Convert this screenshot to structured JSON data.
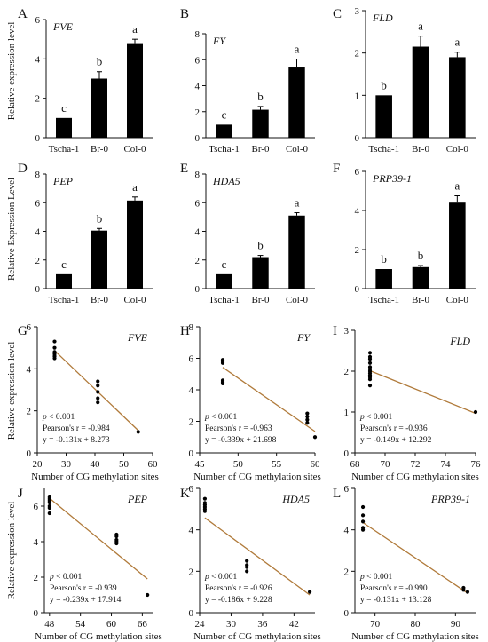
{
  "labels": {
    "ylabel_row1": "Relative expression level",
    "ylabel_row2": "Relative Expression Level",
    "ylabel_row34": "Relative expression level",
    "xlabel_scatter": "Number of CG methylation sites",
    "p_prefix": "p",
    "p_suffix": " < 0.001"
  },
  "chart_data": [
    {
      "panel": "A",
      "type": "bar",
      "gene": "FVE",
      "categories": [
        "Tscha-1",
        "Br-0",
        "Col-0"
      ],
      "values": [
        1.0,
        3.0,
        4.8
      ],
      "errors": [
        0.0,
        0.35,
        0.2
      ],
      "letters": [
        "c",
        "b",
        "a"
      ],
      "ylim": [
        0,
        6
      ],
      "yticks": [
        "0",
        "2",
        "4",
        "6"
      ]
    },
    {
      "panel": "B",
      "type": "bar",
      "gene": "FY",
      "categories": [
        "Tscha-1",
        "Br-0",
        "Col-0"
      ],
      "values": [
        1.0,
        2.15,
        5.4
      ],
      "errors": [
        0.0,
        0.25,
        0.65
      ],
      "letters": [
        "c",
        "b",
        "a"
      ],
      "ylim": [
        0,
        8
      ],
      "yticks": [
        "0",
        "2",
        "4",
        "6",
        "8"
      ]
    },
    {
      "panel": "C",
      "type": "bar",
      "gene": "FLD",
      "categories": [
        "Tscha-1",
        "Br-0",
        "Col-0"
      ],
      "values": [
        1.0,
        2.15,
        1.9
      ],
      "errors": [
        0.0,
        0.25,
        0.12
      ],
      "letters": [
        "b",
        "a",
        "a"
      ],
      "ylim": [
        0,
        3
      ],
      "yticks": [
        "0",
        "1",
        "2",
        "3"
      ]
    },
    {
      "panel": "D",
      "type": "bar",
      "gene": "PEP",
      "categories": [
        "Tscha-1",
        "Br-0",
        "Col-0"
      ],
      "values": [
        1.0,
        4.05,
        6.15
      ],
      "errors": [
        0.0,
        0.15,
        0.25
      ],
      "letters": [
        "c",
        "b",
        "a"
      ],
      "ylim": [
        0,
        8
      ],
      "yticks": [
        "0",
        "2",
        "4",
        "6",
        "8"
      ]
    },
    {
      "panel": "E",
      "type": "bar",
      "gene": "HDA5",
      "categories": [
        "Tscha-1",
        "Br-0",
        "Col-0"
      ],
      "values": [
        1.0,
        2.2,
        5.1
      ],
      "errors": [
        0.0,
        0.12,
        0.2
      ],
      "letters": [
        "c",
        "b",
        "a"
      ],
      "ylim": [
        0,
        8
      ],
      "yticks": [
        "0",
        "2",
        "4",
        "6",
        "8"
      ]
    },
    {
      "panel": "F",
      "type": "bar",
      "gene": "PRP39-1",
      "categories": [
        "Tscha-1",
        "Br-0",
        "Col-0"
      ],
      "values": [
        1.0,
        1.1,
        4.4
      ],
      "errors": [
        0.0,
        0.08,
        0.35
      ],
      "letters": [
        "b",
        "b",
        "a"
      ],
      "ylim": [
        0,
        6
      ],
      "yticks": [
        "0",
        "2",
        "4",
        "6"
      ]
    },
    {
      "panel": "G",
      "type": "scatter",
      "gene": "FVE",
      "xlim": [
        20,
        60
      ],
      "xticks": [
        20,
        30,
        40,
        50,
        60
      ],
      "ylim": [
        0,
        6
      ],
      "yticks": [
        0,
        2,
        4,
        6
      ],
      "x": [
        26,
        26,
        26,
        26,
        26,
        26,
        41,
        41,
        41,
        41,
        41,
        55
      ],
      "y": [
        5.3,
        5.0,
        4.8,
        4.6,
        4.5,
        4.7,
        3.4,
        3.2,
        2.9,
        2.6,
        2.4,
        1.0
      ],
      "fit": {
        "slope": -0.131,
        "intercept": 8.273,
        "x0": 26,
        "x1": 55
      },
      "pearson": "Pearson's r = -0.984",
      "equation": "y = -0.131x + 8.273"
    },
    {
      "panel": "H",
      "type": "scatter",
      "gene": "FY",
      "xlim": [
        45,
        60
      ],
      "xticks": [
        45,
        50,
        55,
        60
      ],
      "ylim": [
        0,
        8
      ],
      "yticks": [
        0,
        2,
        4,
        6,
        8
      ],
      "x": [
        48,
        48,
        48,
        48,
        48,
        48,
        59,
        59,
        59,
        59,
        60
      ],
      "y": [
        5.9,
        5.8,
        5.7,
        4.6,
        4.5,
        4.4,
        2.5,
        2.3,
        2.1,
        1.9,
        1.0
      ],
      "fit": {
        "slope": -0.339,
        "intercept": 21.698,
        "x0": 48,
        "x1": 60
      },
      "pearson": "Pearson's r = -0.963",
      "equation": "y = -0.339x + 21.698"
    },
    {
      "panel": "I",
      "type": "scatter",
      "gene": "FLD",
      "xlim": [
        68,
        76
      ],
      "xticks": [
        68,
        70,
        72,
        74,
        76
      ],
      "ylim": [
        0,
        3
      ],
      "yticks": [
        0,
        1,
        2,
        3
      ],
      "x": [
        69,
        69,
        69,
        69,
        69,
        69,
        69,
        69,
        69,
        69,
        69,
        69,
        76
      ],
      "y": [
        2.45,
        2.35,
        2.3,
        2.2,
        2.1,
        2.05,
        2.0,
        1.95,
        1.9,
        1.85,
        1.8,
        1.65,
        1.0
      ],
      "fit": {
        "slope": -0.149,
        "intercept": 12.292,
        "x0": 69,
        "x1": 76
      },
      "pearson": "Pearson's r = -0.936",
      "equation": "y = -0.149x + 12.292"
    },
    {
      "panel": "J",
      "type": "scatter",
      "gene": "PEP",
      "xlim": [
        47,
        68
      ],
      "xticks": [
        48,
        54,
        60,
        66
      ],
      "ylim": [
        0,
        7
      ],
      "yticks": [
        0,
        2,
        4,
        6
      ],
      "x": [
        48,
        48,
        48,
        48,
        48,
        48,
        48,
        61,
        61,
        61,
        61,
        61,
        67
      ],
      "y": [
        6.5,
        6.4,
        6.3,
        6.2,
        6.0,
        5.9,
        5.6,
        4.4,
        4.3,
        4.1,
        4.0,
        3.9,
        1.0
      ],
      "fit": {
        "slope": -0.239,
        "intercept": 17.914,
        "x0": 48,
        "x1": 67
      },
      "pearson": "Pearson's r = -0.939",
      "equation": "y = -0.239x + 17.914"
    },
    {
      "panel": "K",
      "type": "scatter",
      "gene": "HDA5",
      "xlim": [
        24,
        46
      ],
      "xticks": [
        24,
        30,
        36,
        42
      ],
      "ylim": [
        0,
        6
      ],
      "yticks": [
        0,
        2,
        4,
        6
      ],
      "x": [
        25,
        25,
        25,
        25,
        25,
        25,
        33,
        33,
        33,
        33,
        45
      ],
      "y": [
        5.5,
        5.3,
        5.2,
        5.1,
        5.0,
        4.9,
        2.5,
        2.3,
        2.2,
        2.0,
        1.0
      ],
      "fit": {
        "slope": -0.186,
        "intercept": 9.228,
        "x0": 25,
        "x1": 45
      },
      "pearson": "Pearson's r = -0.926",
      "equation": "y = -0.186x + 9.228"
    },
    {
      "panel": "L",
      "type": "scatter",
      "gene": "PRP39-1",
      "xlim": [
        65,
        95
      ],
      "xticks": [
        70,
        80,
        90
      ],
      "ylim": [
        0,
        6
      ],
      "yticks": [
        0,
        2,
        4,
        6
      ],
      "x": [
        67,
        67,
        67,
        67,
        67,
        92,
        92,
        93
      ],
      "y": [
        5.1,
        4.7,
        4.4,
        4.1,
        4.0,
        1.2,
        1.1,
        1.0
      ],
      "fit": {
        "slope": -0.131,
        "intercept": 13.128,
        "x0": 67,
        "x1": 93
      },
      "pearson": "Pearson's r = -0.990",
      "equation": "y = -0.131x + 13.128"
    }
  ]
}
